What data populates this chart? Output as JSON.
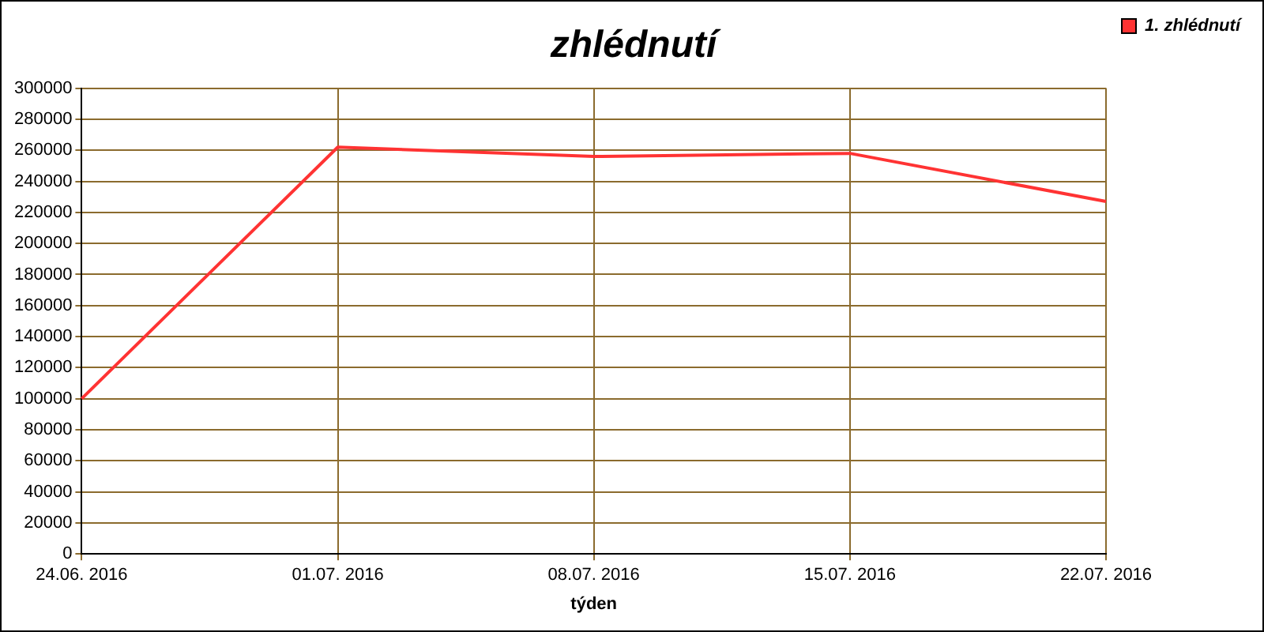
{
  "chart_data": {
    "type": "line",
    "title": "zhlédnutí",
    "xlabel": "týden",
    "categories": [
      "24.06. 2016",
      "01.07. 2016",
      "08.07. 2016",
      "15.07. 2016",
      "22.07. 2016"
    ],
    "series": [
      {
        "name": "1. zhlédnutí",
        "color": "#ff3333",
        "values": [
          100000,
          262000,
          256000,
          258000,
          227000
        ]
      }
    ],
    "ylim": [
      0,
      300000
    ],
    "yticks": [
      0,
      20000,
      40000,
      60000,
      80000,
      100000,
      120000,
      140000,
      160000,
      180000,
      200000,
      220000,
      240000,
      260000,
      280000,
      300000
    ],
    "grid": true,
    "legend": "top right",
    "marker": "none",
    "line_style": "solid"
  }
}
